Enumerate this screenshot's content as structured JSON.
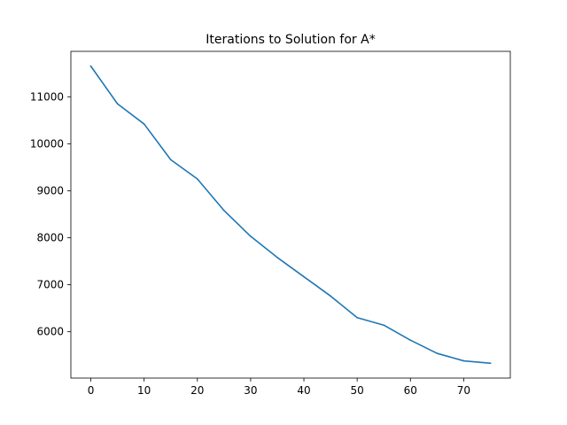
{
  "chart_data": {
    "type": "line",
    "title": "Iterations to Solution for A*",
    "xlabel": "",
    "ylabel": "",
    "x": [
      0,
      5,
      10,
      15,
      20,
      25,
      30,
      35,
      40,
      45,
      50,
      55,
      60,
      65,
      70,
      75
    ],
    "series": [
      {
        "values": [
          11650,
          10850,
          10420,
          9660,
          9250,
          8580,
          8030,
          7580,
          7170,
          6760,
          6300,
          6140,
          5820,
          5540,
          5380,
          5330
        ],
        "color": "#1f77b4"
      }
    ],
    "xlim": [
      -3.75,
      78.75
    ],
    "ylim": [
      5014,
      11966
    ],
    "xticks": [
      0,
      10,
      20,
      30,
      40,
      50,
      60,
      70
    ],
    "yticks": [
      6000,
      7000,
      8000,
      9000,
      10000,
      11000
    ],
    "xtick_labels": [
      "0",
      "10",
      "20",
      "30",
      "40",
      "50",
      "60",
      "70"
    ],
    "ytick_labels": [
      "6000",
      "7000",
      "8000",
      "9000",
      "10000",
      "11000"
    ],
    "grid": false,
    "legend": "none"
  }
}
